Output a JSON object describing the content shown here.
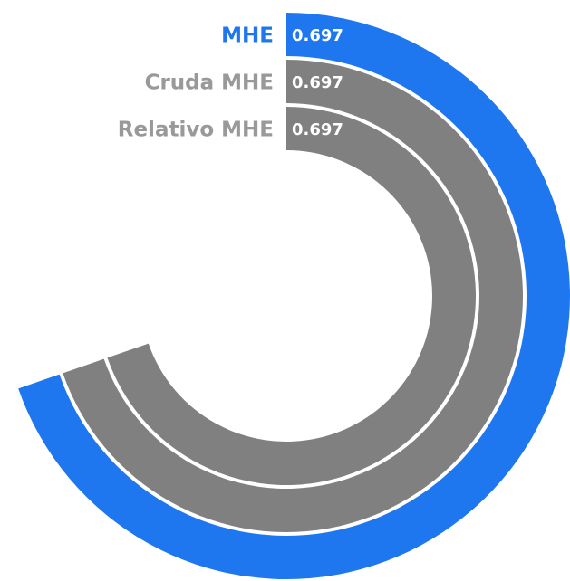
{
  "chart_data": {
    "type": "radialBar",
    "categories": [
      "MHE",
      "Cruda MHE",
      "Relativo MHE"
    ],
    "values": [
      0.697,
      0.697,
      0.697
    ],
    "colors": [
      "#1f77f0",
      "#808080",
      "#808080"
    ],
    "label_colors": [
      "#1f77f0",
      "#999999",
      "#999999"
    ],
    "xlim": [
      0,
      1
    ]
  }
}
